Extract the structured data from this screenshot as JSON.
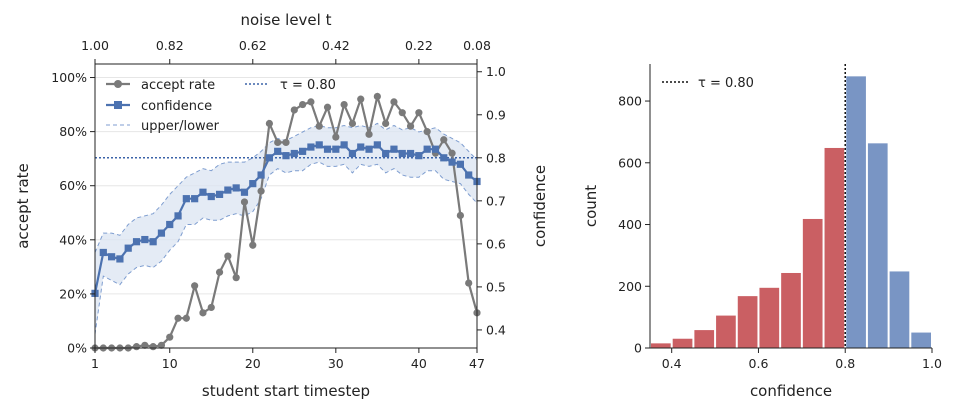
{
  "chart_data": [
    {
      "type": "line",
      "x_label": "student start timestep",
      "y_label_left": "accept rate",
      "y_label_right": "confidence",
      "top_axis_label": "noise level t",
      "x_range": [
        1,
        47
      ],
      "x_ticks": [
        1,
        10,
        20,
        30,
        40,
        47
      ],
      "top_ticks": [
        {
          "x": 1,
          "label": "1.00"
        },
        {
          "x": 10,
          "label": "0.82"
        },
        {
          "x": 20,
          "label": "0.62"
        },
        {
          "x": 30,
          "label": "0.42"
        },
        {
          "x": 40,
          "label": "0.22"
        },
        {
          "x": 47,
          "label": "0.08"
        }
      ],
      "y_left_range": [
        0,
        105
      ],
      "y_left_ticks": [
        "0%",
        "20%",
        "40%",
        "60%",
        "80%",
        "100%"
      ],
      "y_right_range": [
        0.358,
        1.018
      ],
      "y_right_ticks": [
        "0.4",
        "0.5",
        "0.6",
        "0.7",
        "0.8",
        "0.9",
        "1.0"
      ],
      "threshold": {
        "value": 0.8,
        "label": "τ = 0.80"
      },
      "grid": "horizontal",
      "legend_position": "top-left",
      "colors": {
        "accept": "#7a7a7a",
        "confidence": "#4c72b0",
        "band": "#dbe4f1",
        "threshold": "#3b63a8"
      },
      "series": [
        {
          "name": "accept rate",
          "axis": "left",
          "x": [
            1,
            2,
            3,
            4,
            5,
            6,
            7,
            8,
            9,
            10,
            11,
            12,
            13,
            14,
            15,
            16,
            17,
            18,
            19,
            20,
            21,
            22,
            23,
            24,
            25,
            26,
            27,
            28,
            29,
            30,
            31,
            32,
            33,
            34,
            35,
            36,
            37,
            38,
            39,
            40,
            41,
            42,
            43,
            44,
            45,
            46,
            47
          ],
          "values": [
            0,
            0,
            0,
            0,
            0,
            0.5,
            1,
            0.5,
            1,
            4,
            11,
            11,
            23,
            13,
            15,
            28,
            34,
            26,
            54,
            38,
            58,
            83,
            76,
            76,
            88,
            90,
            91,
            82,
            89,
            78,
            90,
            83,
            92,
            79,
            93,
            83,
            91,
            87,
            82,
            87,
            80,
            72,
            77,
            72,
            49,
            24,
            13
          ]
        },
        {
          "name": "confidence",
          "axis": "right",
          "x": [
            1,
            2,
            3,
            4,
            5,
            6,
            7,
            8,
            9,
            10,
            11,
            12,
            13,
            14,
            15,
            16,
            17,
            18,
            19,
            20,
            21,
            22,
            23,
            24,
            25,
            26,
            27,
            28,
            29,
            30,
            31,
            32,
            33,
            34,
            35,
            36,
            37,
            38,
            39,
            40,
            41,
            42,
            43,
            44,
            45,
            46,
            47
          ],
          "values": [
            0.485,
            0.58,
            0.57,
            0.565,
            0.59,
            0.605,
            0.61,
            0.605,
            0.625,
            0.645,
            0.665,
            0.705,
            0.705,
            0.72,
            0.71,
            0.715,
            0.725,
            0.73,
            0.72,
            0.74,
            0.76,
            0.8,
            0.815,
            0.805,
            0.81,
            0.815,
            0.825,
            0.83,
            0.82,
            0.82,
            0.83,
            0.81,
            0.825,
            0.82,
            0.83,
            0.81,
            0.82,
            0.81,
            0.81,
            0.805,
            0.82,
            0.82,
            0.8,
            0.79,
            0.785,
            0.76,
            0.745
          ]
        },
        {
          "name": "upper/lower",
          "axis": "right",
          "x": [
            1,
            2,
            3,
            4,
            5,
            6,
            7,
            8,
            9,
            10,
            11,
            12,
            13,
            14,
            15,
            16,
            17,
            18,
            19,
            20,
            21,
            22,
            23,
            24,
            25,
            26,
            27,
            28,
            29,
            30,
            31,
            32,
            33,
            34,
            35,
            36,
            37,
            38,
            39,
            40,
            41,
            42,
            43,
            44,
            45,
            46,
            47
          ],
          "upper": [
            0.58,
            0.625,
            0.625,
            0.62,
            0.645,
            0.66,
            0.665,
            0.67,
            0.69,
            0.715,
            0.735,
            0.755,
            0.765,
            0.775,
            0.77,
            0.785,
            0.79,
            0.79,
            0.79,
            0.8,
            0.815,
            0.835,
            0.845,
            0.84,
            0.85,
            0.86,
            0.87,
            0.875,
            0.87,
            0.87,
            0.875,
            0.87,
            0.875,
            0.87,
            0.88,
            0.865,
            0.875,
            0.865,
            0.87,
            0.86,
            0.865,
            0.87,
            0.855,
            0.845,
            0.835,
            0.815,
            0.795
          ],
          "lower": [
            0.39,
            0.525,
            0.515,
            0.505,
            0.53,
            0.545,
            0.55,
            0.545,
            0.56,
            0.585,
            0.605,
            0.645,
            0.645,
            0.66,
            0.655,
            0.655,
            0.665,
            0.67,
            0.665,
            0.675,
            0.705,
            0.76,
            0.775,
            0.765,
            0.77,
            0.77,
            0.785,
            0.79,
            0.78,
            0.78,
            0.785,
            0.765,
            0.785,
            0.78,
            0.785,
            0.765,
            0.775,
            0.76,
            0.755,
            0.755,
            0.77,
            0.77,
            0.75,
            0.745,
            0.74,
            0.715,
            0.695
          ]
        }
      ]
    },
    {
      "type": "bar",
      "x_label": "confidence",
      "y_label": "count",
      "x_range": [
        0.35,
        1.0
      ],
      "x_ticks": [
        "0.4",
        "0.6",
        "0.8",
        "1.0"
      ],
      "y_range": [
        0,
        920
      ],
      "y_ticks": [
        "0",
        "200",
        "400",
        "600",
        "800"
      ],
      "threshold": {
        "value": 0.8,
        "label": "τ = 0.80"
      },
      "legend_position": "top-left",
      "colors": {
        "below": "#c44e52",
        "above": "#4c72b0"
      },
      "bins": [
        {
          "x": 0.35,
          "value": 15,
          "group": "below"
        },
        {
          "x": 0.4,
          "value": 30,
          "group": "below"
        },
        {
          "x": 0.45,
          "value": 58,
          "group": "below"
        },
        {
          "x": 0.5,
          "value": 105,
          "group": "below"
        },
        {
          "x": 0.55,
          "value": 168,
          "group": "below"
        },
        {
          "x": 0.6,
          "value": 195,
          "group": "below"
        },
        {
          "x": 0.65,
          "value": 243,
          "group": "below"
        },
        {
          "x": 0.7,
          "value": 418,
          "group": "below"
        },
        {
          "x": 0.75,
          "value": 648,
          "group": "below"
        },
        {
          "x": 0.8,
          "value": 880,
          "group": "above"
        },
        {
          "x": 0.85,
          "value": 663,
          "group": "above"
        },
        {
          "x": 0.9,
          "value": 248,
          "group": "above"
        },
        {
          "x": 0.95,
          "value": 50,
          "group": "above"
        }
      ]
    }
  ]
}
